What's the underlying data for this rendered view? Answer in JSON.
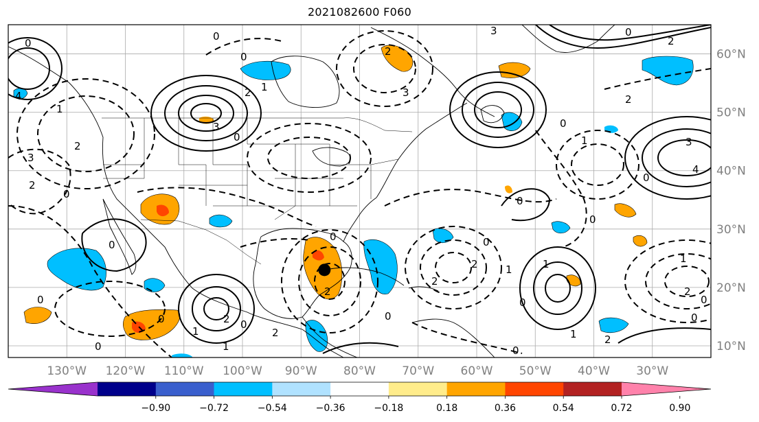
{
  "title": "2021082600 F060",
  "map": {
    "projection": "plate-carree",
    "lon_range": [
      -140,
      -20
    ],
    "lat_range": [
      8,
      65
    ],
    "lon_ticks": [
      {
        "value": -130,
        "label": "130°W"
      },
      {
        "value": -120,
        "label": "120°W"
      },
      {
        "value": -110,
        "label": "110°W"
      },
      {
        "value": -100,
        "label": "100°W"
      },
      {
        "value": -90,
        "label": "90°W"
      },
      {
        "value": -80,
        "label": "80°W"
      },
      {
        "value": -70,
        "label": "70°W"
      },
      {
        "value": -60,
        "label": "60°W"
      },
      {
        "value": -50,
        "label": "50°W"
      },
      {
        "value": -40,
        "label": "40°W"
      },
      {
        "value": -30,
        "label": "30°W"
      }
    ],
    "lat_ticks": [
      {
        "value": 10,
        "label": "10°N"
      },
      {
        "value": 20,
        "label": "20°N"
      },
      {
        "value": 30,
        "label": "30°N"
      },
      {
        "value": 40,
        "label": "40°N"
      },
      {
        "value": 50,
        "label": "50°N"
      },
      {
        "value": 60,
        "label": "60°N"
      }
    ],
    "gridlines": true,
    "storm_marker": {
      "lon": -86,
      "lat": 23
    }
  },
  "colorbar": {
    "extend": "both",
    "bins": [
      "#9932cc",
      "#00008b",
      "#3a5fcd",
      "#00bfff",
      "#b0e2ff",
      "#ffffff",
      "#ffec8b",
      "#ffa500",
      "#ff4500",
      "#b22222",
      "#ff82ab"
    ],
    "tick_labels": [
      "−0.90",
      "−0.72",
      "−0.54",
      "−0.36",
      "−0.18",
      "0.18",
      "0.36",
      "0.54",
      "0.72",
      "0.90"
    ]
  },
  "contour_labels": [
    "0",
    "1",
    "2",
    "3",
    "4"
  ]
}
